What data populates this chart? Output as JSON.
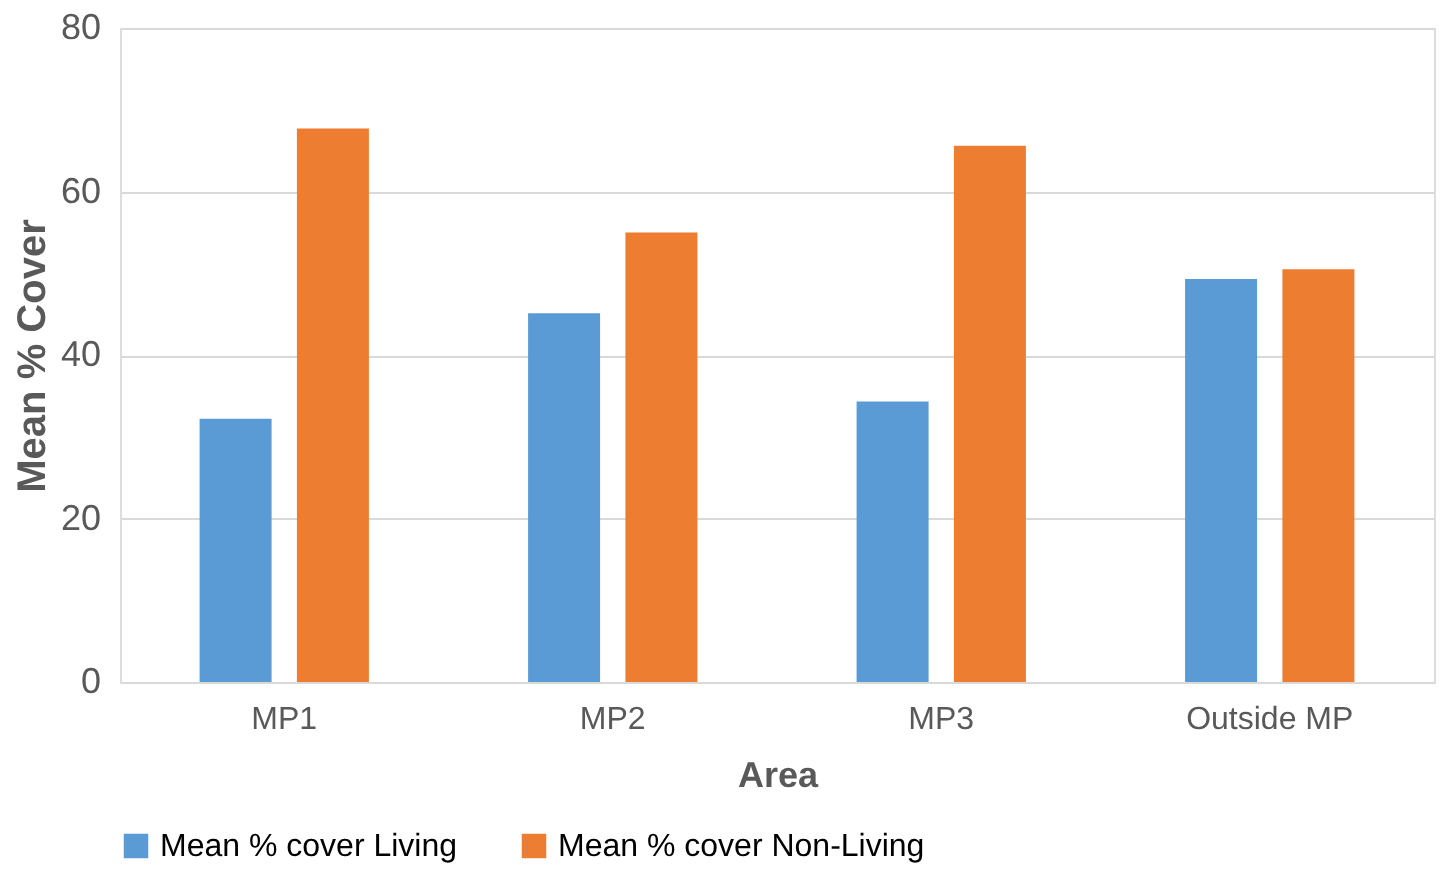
{
  "chart_data": {
    "type": "bar",
    "xlabel": "Area",
    "ylabel": "Mean % Cover",
    "categories": [
      "MP1",
      "MP2",
      "MP3",
      "Outside MP"
    ],
    "series": [
      {
        "name": "Mean % cover Living",
        "color": "#5b9bd5",
        "values": [
          32.2,
          45.1,
          34.3,
          49.3
        ]
      },
      {
        "name": "Mean % cover Non-Living",
        "color": "#ed7d31",
        "values": [
          67.7,
          55.0,
          65.6,
          50.5
        ]
      }
    ],
    "ylim": [
      0,
      80
    ],
    "yticks": [
      0,
      20,
      40,
      60,
      80
    ],
    "grid": "y",
    "legend": "bottom"
  }
}
